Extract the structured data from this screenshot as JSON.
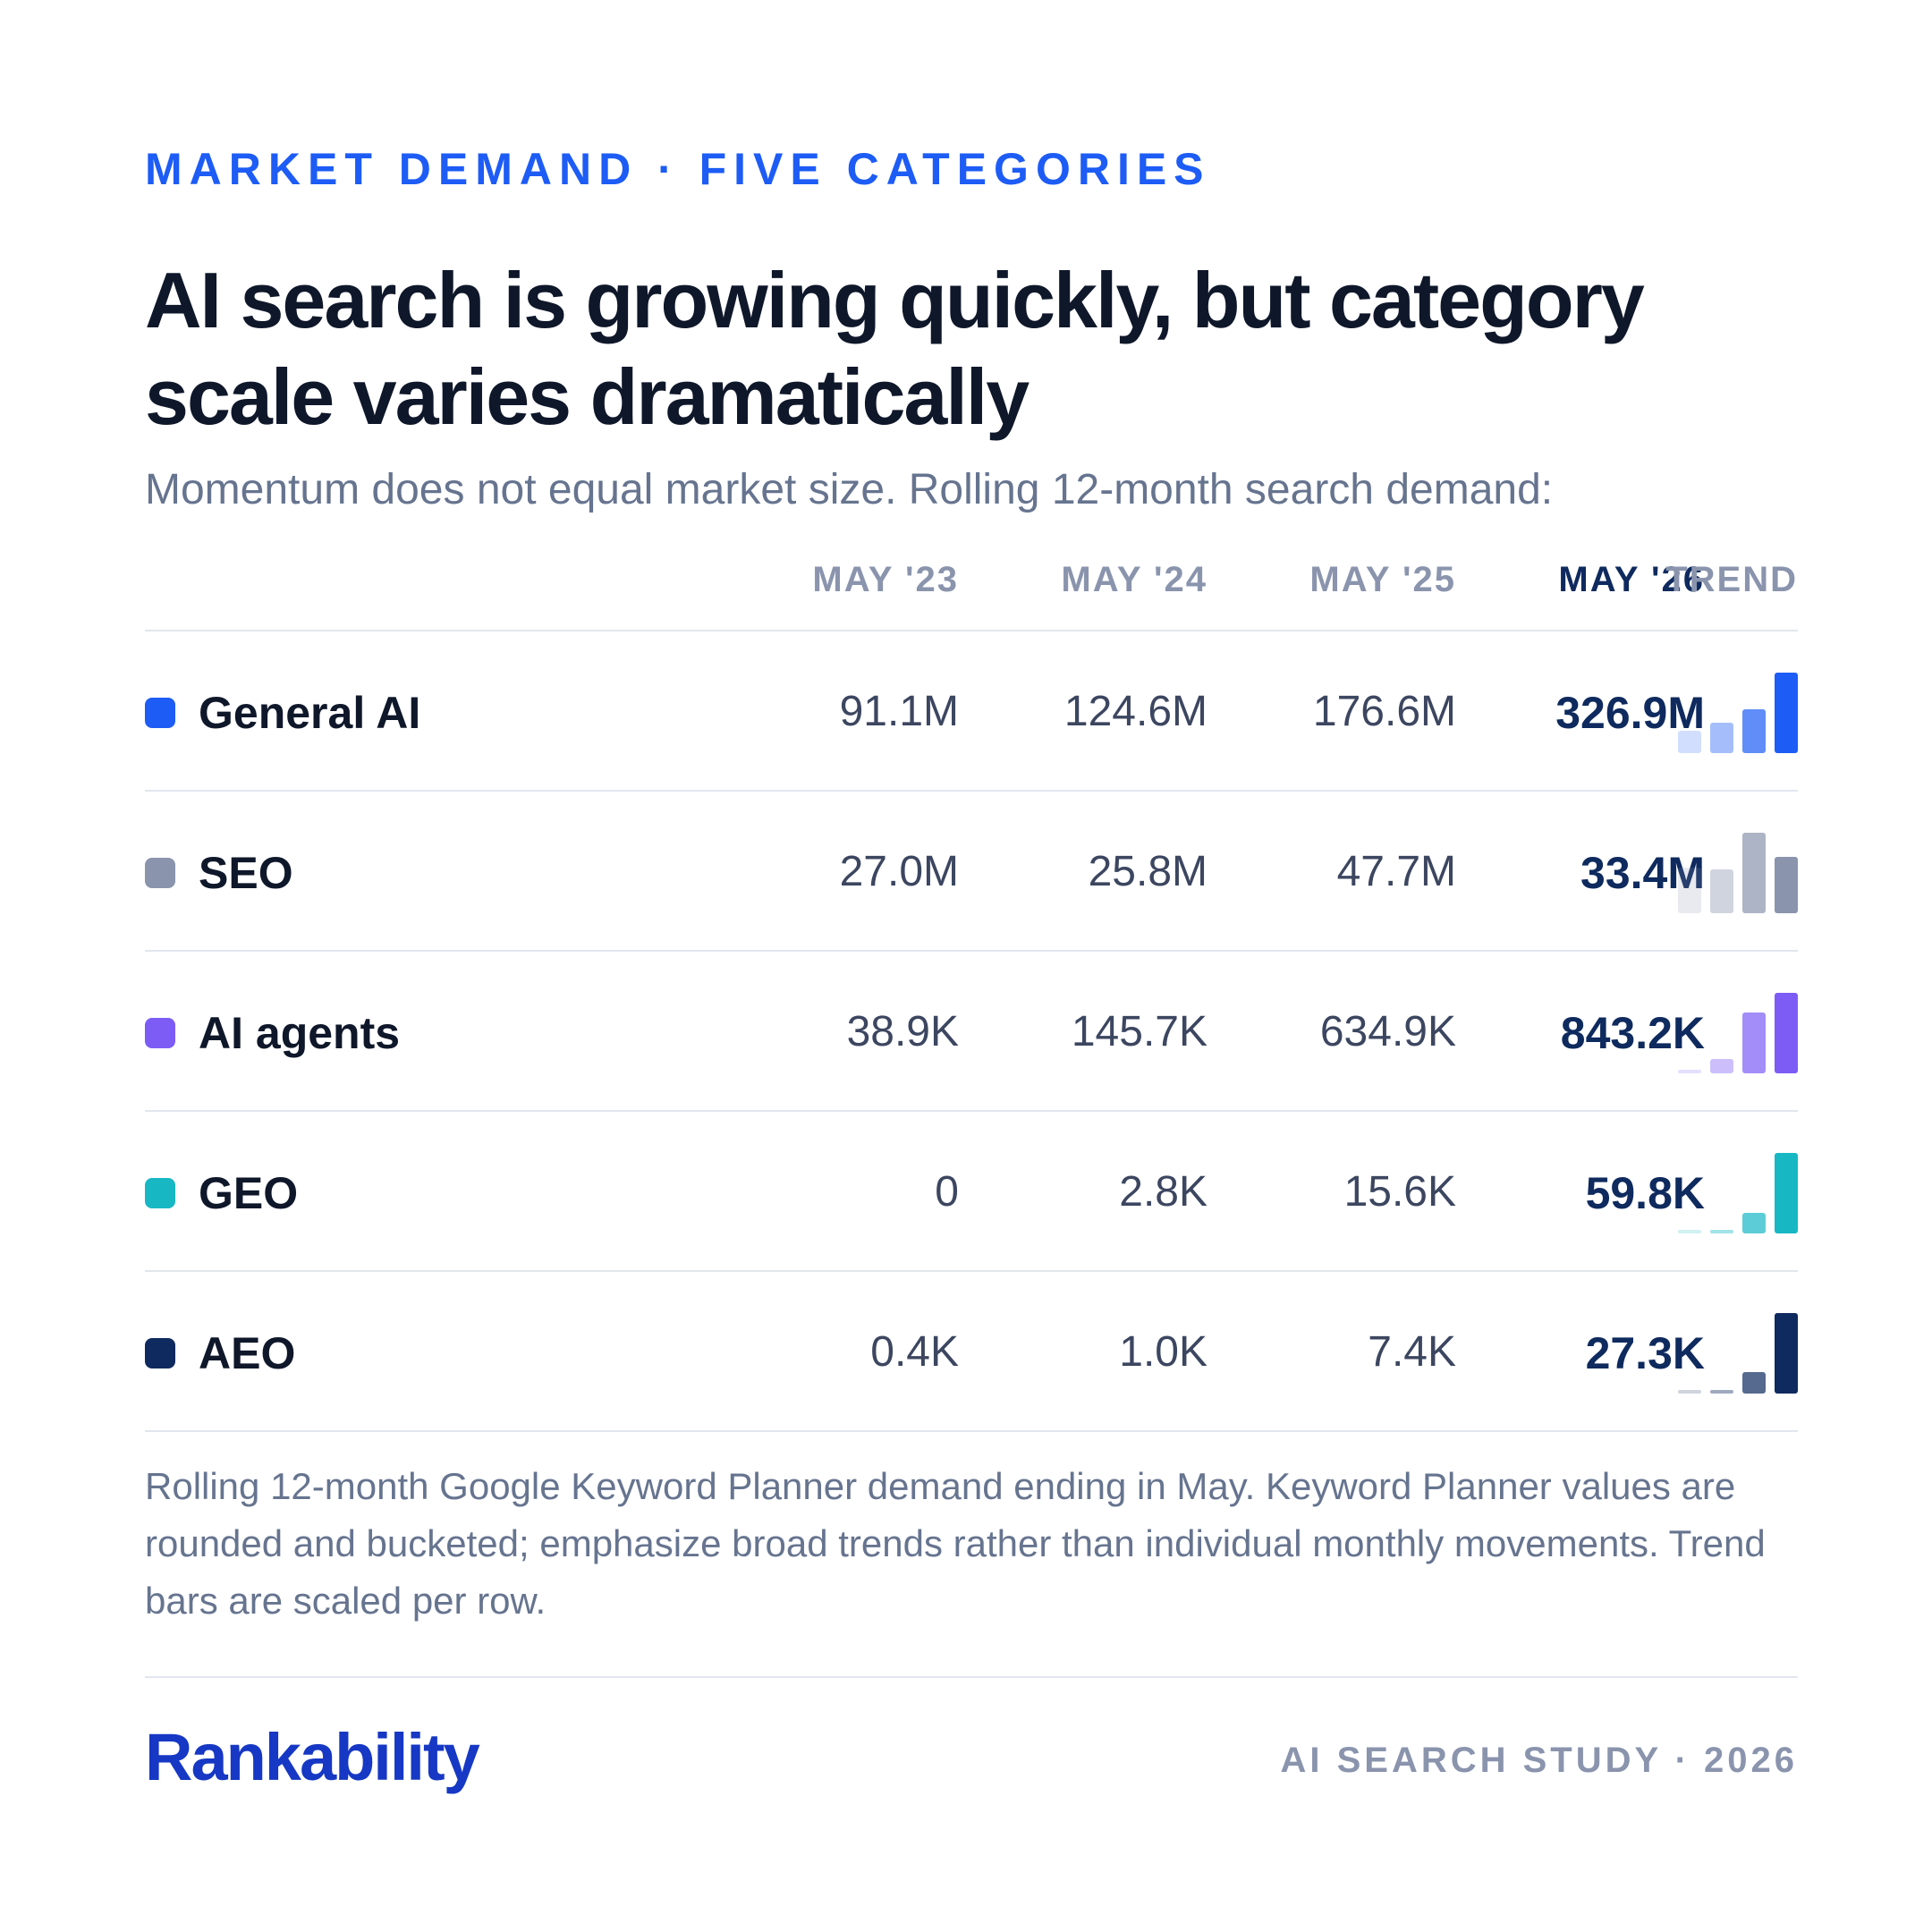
{
  "eyebrow": "MARKET DEMAND · FIVE CATEGORIES",
  "title": "AI search is growing quickly, but category scale varies dramatically",
  "subtitle": "Momentum does not equal market size. Rolling 12-month search demand:",
  "columns": [
    "MAY '23",
    "MAY '24",
    "MAY '25",
    "MAY '26"
  ],
  "trend_header": "TREND",
  "chart_data": {
    "type": "table",
    "categories": [
      "MAY '23",
      "MAY '24",
      "MAY '25",
      "MAY '26"
    ],
    "series": [
      {
        "name": "General AI",
        "color": "#1d5cf5",
        "labels": [
          "91.1M",
          "124.6M",
          "176.6M",
          "326.9M"
        ],
        "values": [
          91100000,
          124600000,
          176600000,
          326900000
        ]
      },
      {
        "name": "SEO",
        "color": "#8a94ad",
        "labels": [
          "27.0M",
          "25.8M",
          "47.7M",
          "33.4M"
        ],
        "values": [
          27000000,
          25800000,
          47700000,
          33400000
        ]
      },
      {
        "name": "AI agents",
        "color": "#7c5cf5",
        "labels": [
          "38.9K",
          "145.7K",
          "634.9K",
          "843.2K"
        ],
        "values": [
          38900,
          145700,
          634900,
          843200
        ]
      },
      {
        "name": "GEO",
        "color": "#17b8c4",
        "labels": [
          "0",
          "2.8K",
          "15.6K",
          "59.8K"
        ],
        "values": [
          0,
          2800,
          15600,
          59800
        ]
      },
      {
        "name": "AEO",
        "color": "#0e2a5e",
        "labels": [
          "0.4K",
          "1.0K",
          "7.4K",
          "27.3K"
        ],
        "values": [
          400,
          1000,
          7400,
          27300
        ]
      }
    ]
  },
  "footnote": "Rolling 12-month Google Keyword Planner demand ending in May. Keyword Planner values are rounded and bucketed; emphasize broad trends rather than individual monthly movements. Trend bars are scaled per row.",
  "brand": "Rankability",
  "study": "AI SEARCH STUDY · 2026"
}
